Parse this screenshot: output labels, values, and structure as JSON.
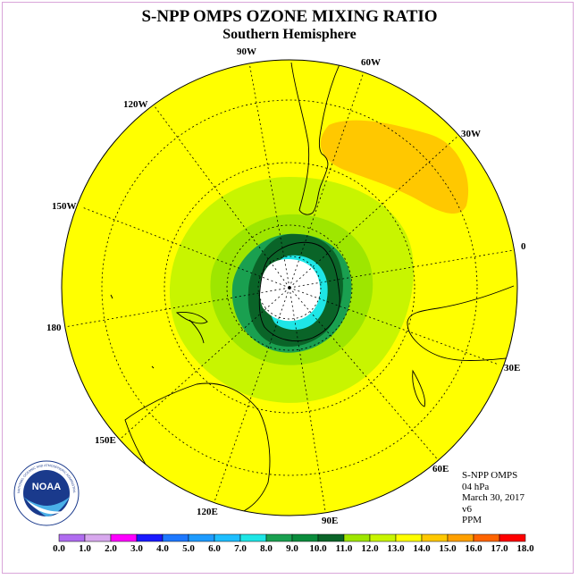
{
  "title": "S-NPP OMPS OZONE MIXING RATIO",
  "subtitle": "Southern Hemisphere",
  "longitude_labels": {
    "lon_90w": "90W",
    "lon_60w": "60W",
    "lon_120w": "120W",
    "lon_30w": "30W",
    "lon_150w": "150W",
    "lon_0": "0",
    "lon_180": "180",
    "lon_30e": "30E",
    "lon_150e": "150E",
    "lon_60e": "60E",
    "lon_120e": "120E",
    "lon_90e": "90E"
  },
  "info": {
    "instrument": "S-NPP OMPS",
    "level": "04 hPa",
    "date": "March 30, 2017",
    "version": "v6",
    "units": "PPM"
  },
  "logo": {
    "text": "NOAA",
    "ring_text": "NATIONAL OCEANIC AND ATMOSPHERIC ADMINISTRATION U.S. DEPARTMENT OF COMMERCE"
  },
  "colorbar": {
    "tick_labels": [
      "0.0",
      "1.0",
      "2.0",
      "3.0",
      "4.0",
      "5.0",
      "6.0",
      "7.0",
      "8.0",
      "9.0",
      "10.0",
      "11.0",
      "12.0",
      "13.0",
      "14.0",
      "15.0",
      "16.0",
      "17.0",
      "18.0"
    ],
    "colors": [
      "#b06cf0",
      "#d8a8ee",
      "#ff00ff",
      "#1a1aff",
      "#1e78ff",
      "#1e9bff",
      "#1ebeff",
      "#1ee6e6",
      "#1aa050",
      "#0a8c3c",
      "#0a6428",
      "#9ee600",
      "#c8f500",
      "#ffff00",
      "#ffc800",
      "#ffa000",
      "#ff6400",
      "#ff0000",
      "#8c5028"
    ]
  },
  "colors": {
    "background_field": "#ffff00",
    "high_region": "#ffc800",
    "ring_11": "#c8f500",
    "ring_10": "#9ee600",
    "ring_9": "#0a8c3c",
    "ring_8": "#0a6428",
    "cyan_zone": "#1ee6e6",
    "pole_missing": "#ffffff"
  }
}
